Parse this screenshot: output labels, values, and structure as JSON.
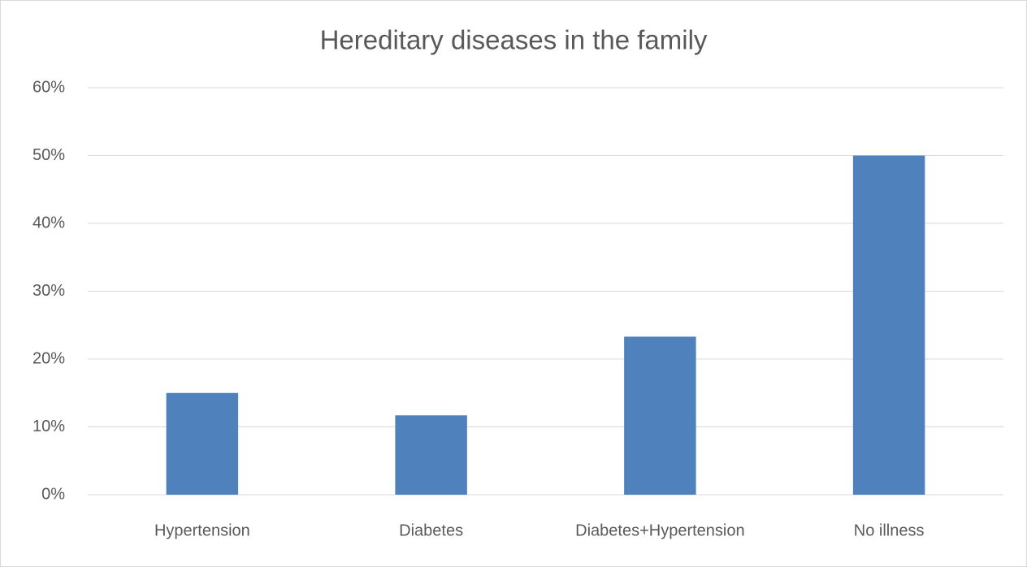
{
  "chart_data": {
    "type": "bar",
    "title": "Hereditary diseases in the family",
    "categories": [
      "Hypertension",
      "Diabetes",
      "Diabetes+Hypertension",
      "No illness"
    ],
    "values": [
      15,
      11.7,
      23.3,
      50
    ],
    "color": "#4f81bd",
    "ylim": [
      0,
      60
    ],
    "yticks": [
      {
        "value": 0,
        "label": "0%"
      },
      {
        "value": 10,
        "label": "10%"
      },
      {
        "value": 20,
        "label": "20%"
      },
      {
        "value": 30,
        "label": "30%"
      },
      {
        "value": 40,
        "label": "40%"
      },
      {
        "value": 50,
        "label": "50%"
      },
      {
        "value": 60,
        "label": "60%"
      }
    ],
    "grid": true
  }
}
